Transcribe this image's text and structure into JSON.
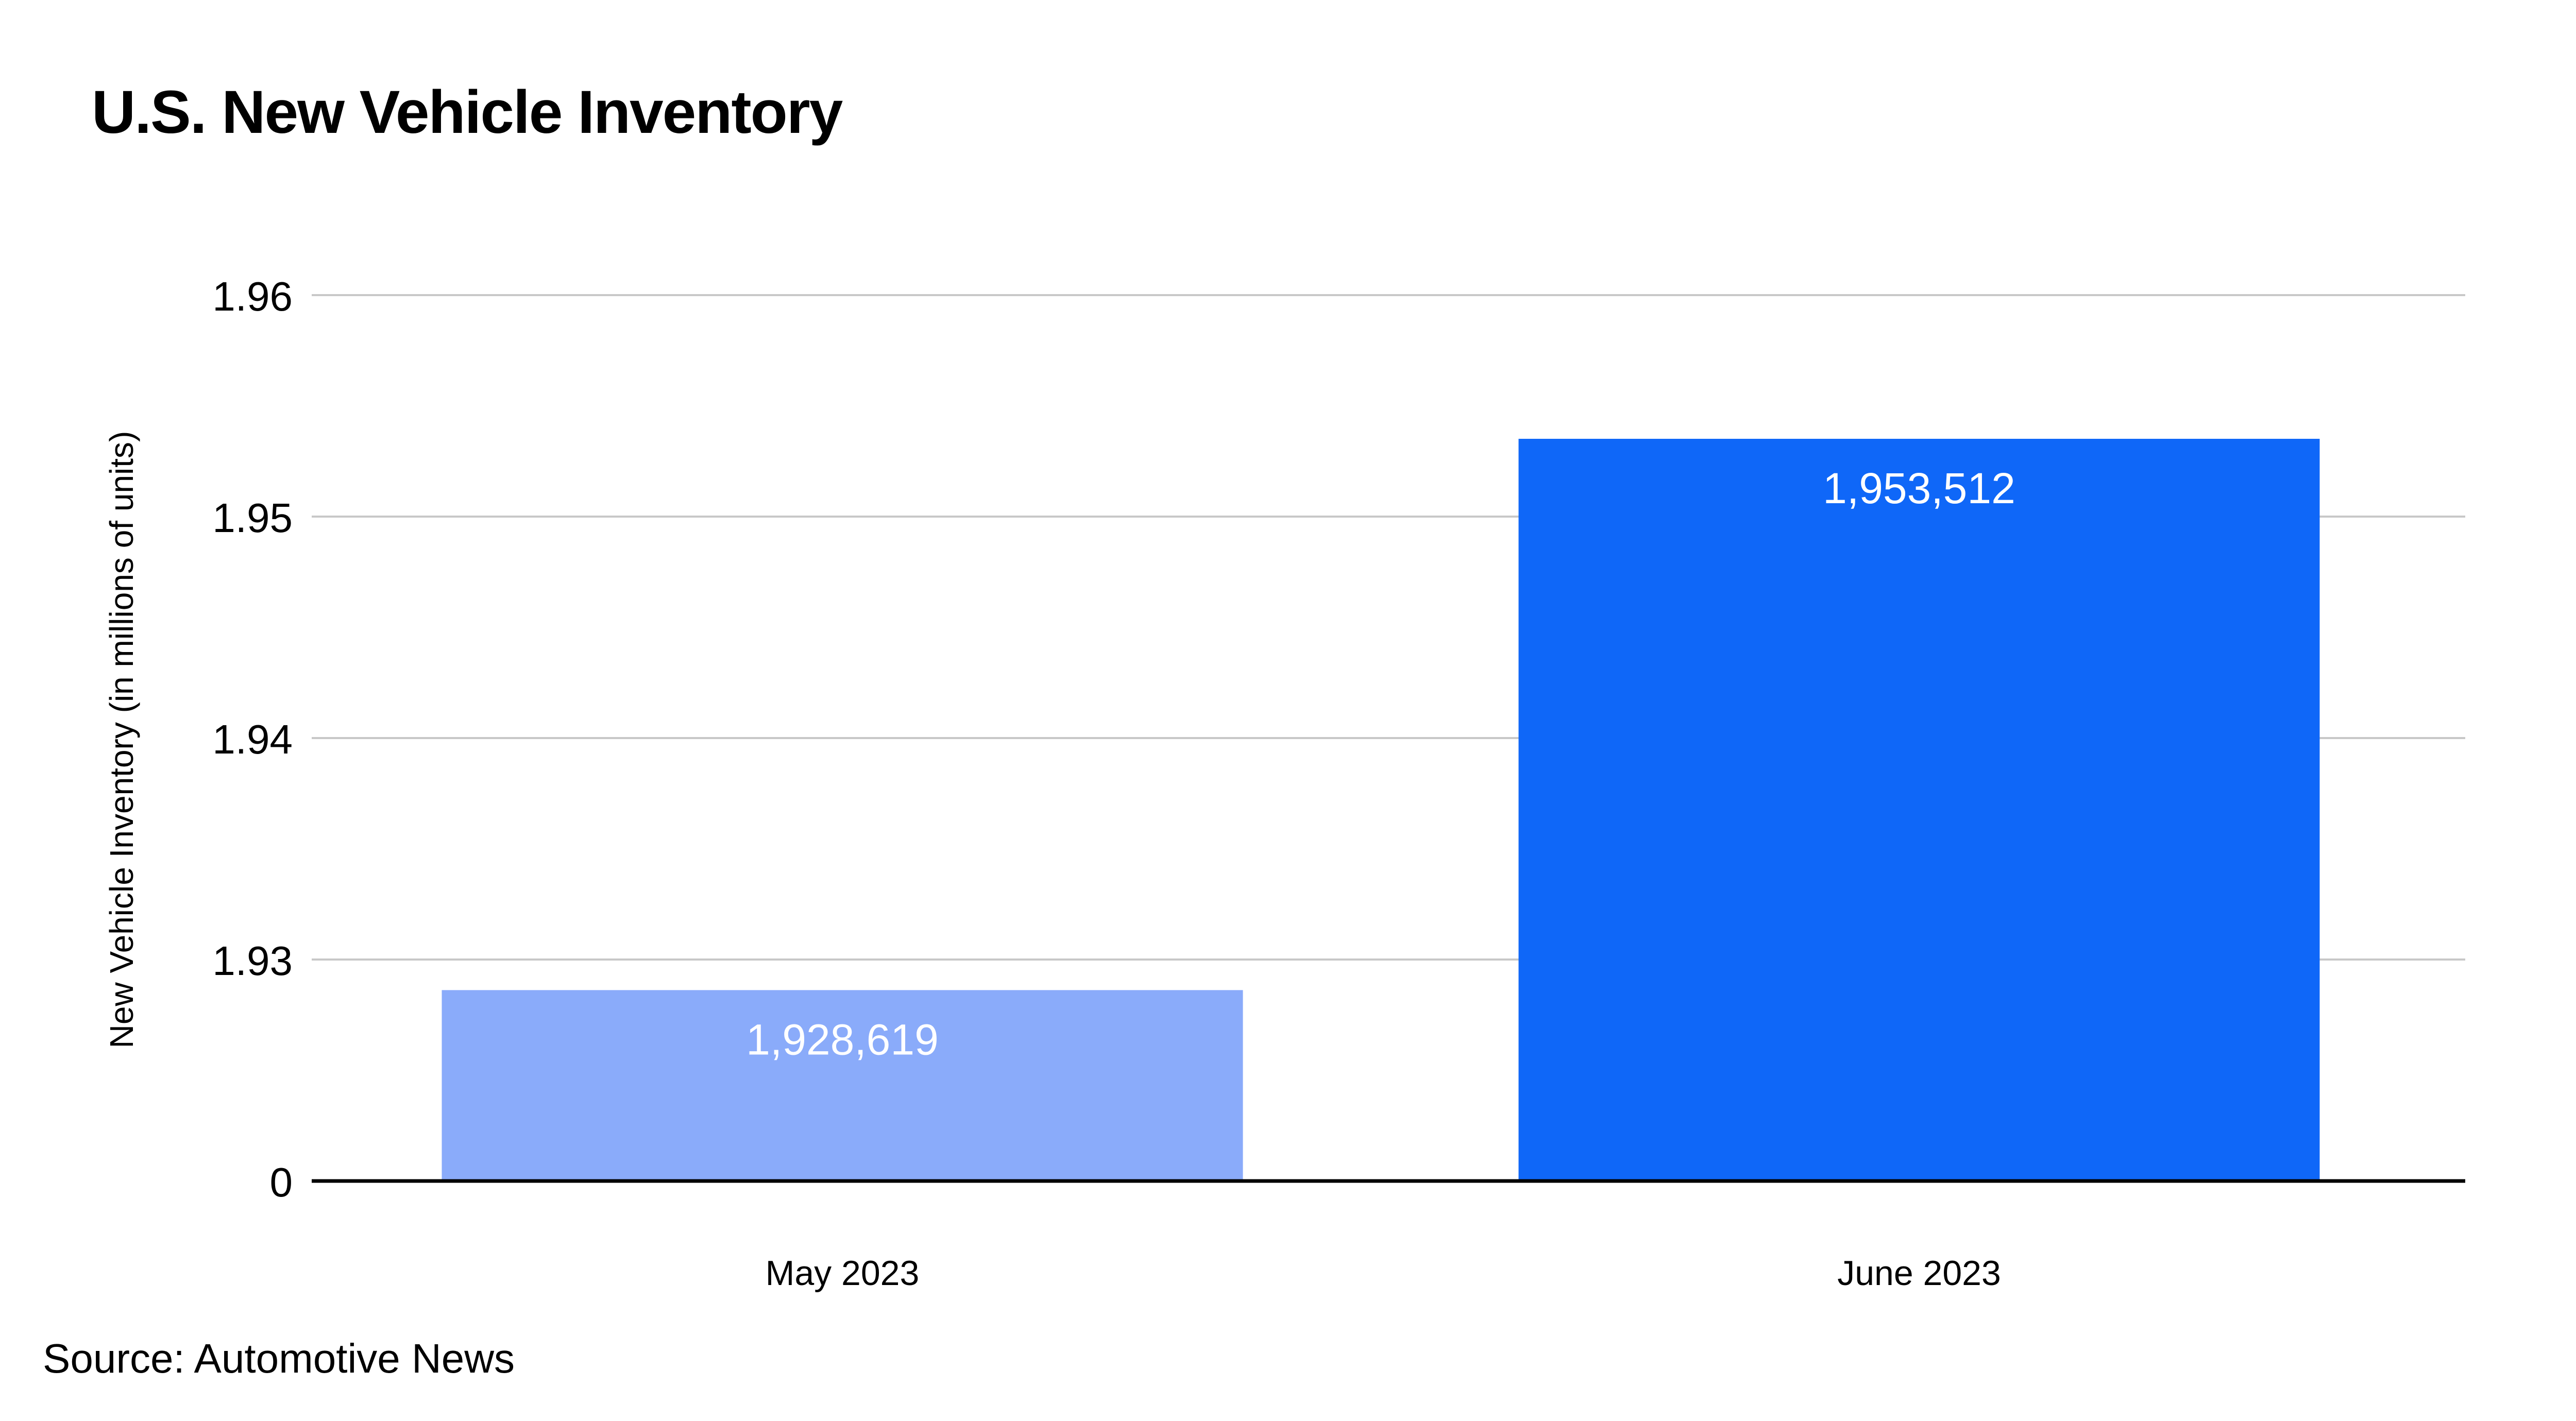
{
  "colors": {
    "background": "#ffffff",
    "gridline": "#c8c8c8",
    "baseline": "#000000",
    "text": "#000000",
    "bar_label": "#ffffff"
  },
  "chart_data": {
    "type": "bar",
    "title": "U.S. New Vehicle Inventory",
    "ylabel": "New Vehicle Inventory (in millions of units)",
    "xlabel": "",
    "categories": [
      "May 2023",
      "June 2023"
    ],
    "values": [
      1928619,
      1953512
    ],
    "data_labels": [
      "1,928,619",
      "1,953,512"
    ],
    "bar_colors": [
      "#8aabfa",
      "#0f67f8"
    ],
    "y_ticks": [
      {
        "value": 0,
        "label": "0"
      },
      {
        "value": 1.93,
        "label": "1.93"
      },
      {
        "value": 1.94,
        "label": "1.94"
      },
      {
        "value": 1.95,
        "label": "1.95"
      },
      {
        "value": 1.96,
        "label": "1.96"
      }
    ],
    "y_axis_broken": true,
    "grid": true,
    "legend": "none"
  },
  "source": "Source: Automotive News"
}
